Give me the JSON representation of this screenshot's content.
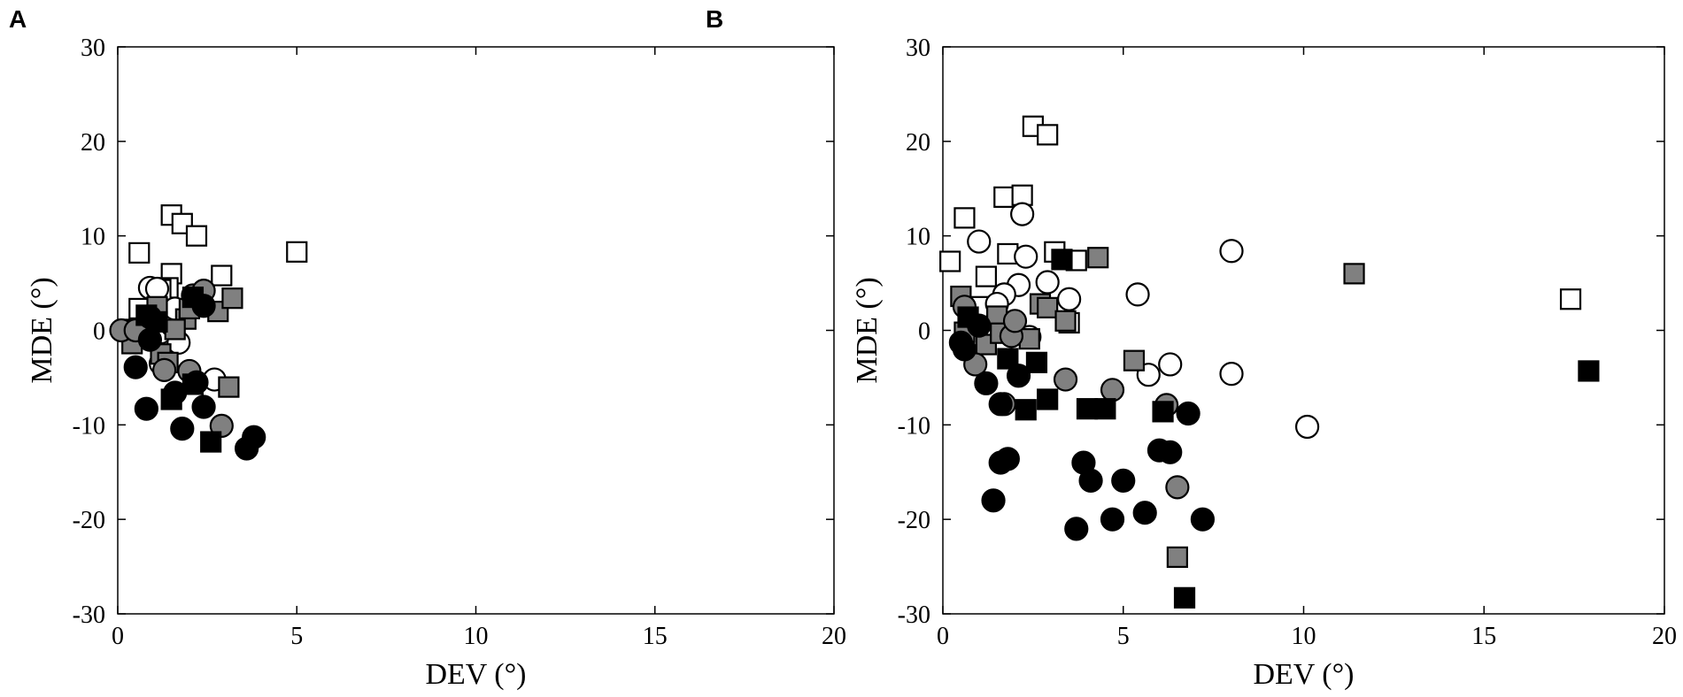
{
  "panels": [
    {
      "letter": "A"
    },
    {
      "letter": "B"
    }
  ],
  "chart_data": [
    {
      "type": "scatter",
      "panel": "A",
      "xlabel": "DEV (°)",
      "ylabel": "MDE (°)",
      "xlim": [
        0,
        20
      ],
      "ylim": [
        -30,
        30
      ],
      "xticks": [
        0,
        5,
        10,
        15,
        20
      ],
      "yticks": [
        30,
        20,
        10,
        0,
        -10,
        -20,
        -30
      ],
      "grid": false,
      "series": [
        {
          "marker": "square",
          "fill": "white",
          "points": [
            [
              0.6,
              8.2
            ],
            [
              1.5,
              12.2
            ],
            [
              1.8,
              11.3
            ],
            [
              2.2,
              10.0
            ],
            [
              1.5,
              6.0
            ],
            [
              2.9,
              5.8
            ],
            [
              5.0,
              8.3
            ],
            [
              1.4,
              4.5
            ],
            [
              0.6,
              2.3
            ],
            [
              1.2,
              4.3
            ]
          ]
        },
        {
          "marker": "circle",
          "fill": "white",
          "points": [
            [
              0.9,
              4.5
            ],
            [
              1.1,
              4.4
            ],
            [
              1.2,
              -0.2
            ],
            [
              1.5,
              0.6
            ],
            [
              1.7,
              -1.3
            ],
            [
              2.7,
              -5.2
            ],
            [
              1.2,
              -3.5
            ],
            [
              1.0,
              1.6
            ],
            [
              1.6,
              2.3
            ]
          ]
        },
        {
          "marker": "square",
          "fill": "gray",
          "points": [
            [
              0.3,
              0.1
            ],
            [
              0.4,
              -1.4
            ],
            [
              1.1,
              2.5
            ],
            [
              1.2,
              -2.5
            ],
            [
              1.4,
              -3.4
            ],
            [
              1.9,
              1.2
            ],
            [
              2.0,
              2.3
            ],
            [
              2.8,
              2.0
            ],
            [
              3.2,
              3.4
            ],
            [
              3.1,
              -6.0
            ],
            [
              1.6,
              0.1
            ]
          ]
        },
        {
          "marker": "circle",
          "fill": "gray",
          "points": [
            [
              0.1,
              0.0
            ],
            [
              0.5,
              0.0
            ],
            [
              2.1,
              3.7
            ],
            [
              2.4,
              4.2
            ],
            [
              2.0,
              -4.3
            ],
            [
              2.9,
              -10.1
            ],
            [
              1.3,
              -4.2
            ]
          ]
        },
        {
          "marker": "square",
          "fill": "black",
          "points": [
            [
              1.1,
              0.9
            ],
            [
              2.1,
              3.5
            ],
            [
              1.5,
              -7.3
            ],
            [
              2.6,
              -11.8
            ],
            [
              2.1,
              -5.7
            ],
            [
              0.8,
              1.6
            ]
          ]
        },
        {
          "marker": "circle",
          "fill": "black",
          "points": [
            [
              0.5,
              -3.9
            ],
            [
              0.8,
              -8.3
            ],
            [
              1.6,
              -6.6
            ],
            [
              1.8,
              -10.4
            ],
            [
              2.4,
              -8.1
            ],
            [
              3.6,
              -12.5
            ],
            [
              3.8,
              -11.3
            ],
            [
              2.2,
              -5.5
            ],
            [
              0.9,
              -1.0
            ],
            [
              2.4,
              2.6
            ],
            [
              0.9,
              1.4
            ]
          ]
        }
      ]
    },
    {
      "type": "scatter",
      "panel": "B",
      "xlabel": "DEV (°)",
      "ylabel": "MDE (°)",
      "xlim": [
        0,
        20
      ],
      "ylim": [
        -30,
        30
      ],
      "xticks": [
        0,
        5,
        10,
        15,
        20
      ],
      "yticks": [
        30,
        20,
        10,
        0,
        -10,
        -20,
        -30
      ],
      "grid": false,
      "series": [
        {
          "marker": "square",
          "fill": "white",
          "points": [
            [
              0.2,
              7.3
            ],
            [
              0.6,
              11.9
            ],
            [
              1.7,
              14.1
            ],
            [
              2.2,
              14.3
            ],
            [
              2.5,
              21.6
            ],
            [
              2.9,
              20.7
            ],
            [
              1.8,
              8.1
            ],
            [
              1.2,
              5.7
            ],
            [
              3.1,
              8.3
            ],
            [
              3.7,
              7.4
            ],
            [
              17.4,
              3.3
            ],
            [
              1.0,
              2.5
            ],
            [
              3.5,
              0.8
            ],
            [
              1.5,
              1.8
            ]
          ]
        },
        {
          "marker": "circle",
          "fill": "white",
          "points": [
            [
              1.0,
              9.4
            ],
            [
              2.2,
              12.3
            ],
            [
              2.3,
              7.8
            ],
            [
              2.1,
              4.8
            ],
            [
              1.7,
              3.8
            ],
            [
              2.9,
              5.1
            ],
            [
              3.5,
              3.3
            ],
            [
              5.4,
              3.8
            ],
            [
              5.7,
              -4.7
            ],
            [
              6.3,
              -3.6
            ],
            [
              8.0,
              8.4
            ],
            [
              8.0,
              -4.6
            ],
            [
              10.1,
              -10.2
            ],
            [
              2.4,
              -0.7
            ],
            [
              1.5,
              2.8
            ]
          ]
        },
        {
          "marker": "square",
          "fill": "gray",
          "points": [
            [
              0.5,
              3.6
            ],
            [
              0.6,
              -0.2
            ],
            [
              1.2,
              -1.5
            ],
            [
              1.5,
              1.5
            ],
            [
              2.4,
              -0.9
            ],
            [
              2.7,
              2.8
            ],
            [
              2.9,
              2.4
            ],
            [
              3.4,
              1.0
            ],
            [
              4.3,
              7.7
            ],
            [
              5.3,
              -3.2
            ],
            [
              6.5,
              -24.0
            ],
            [
              11.4,
              6.0
            ],
            [
              1.6,
              -0.3
            ]
          ]
        },
        {
          "marker": "circle",
          "fill": "gray",
          "points": [
            [
              0.6,
              2.5
            ],
            [
              0.9,
              -3.6
            ],
            [
              1.7,
              -7.8
            ],
            [
              1.9,
              -0.6
            ],
            [
              3.4,
              -5.2
            ],
            [
              4.7,
              -6.3
            ],
            [
              6.2,
              -7.9
            ],
            [
              6.5,
              -16.6
            ],
            [
              2.0,
              1.0
            ]
          ]
        },
        {
          "marker": "square",
          "fill": "black",
          "points": [
            [
              3.3,
              7.5
            ],
            [
              0.7,
              1.4
            ],
            [
              2.6,
              -3.4
            ],
            [
              2.9,
              -7.3
            ],
            [
              2.3,
              -8.4
            ],
            [
              4.0,
              -8.3
            ],
            [
              4.5,
              -8.3
            ],
            [
              6.1,
              -8.6
            ],
            [
              6.7,
              -28.3
            ],
            [
              17.9,
              -4.3
            ],
            [
              1.8,
              -3.0
            ]
          ]
        },
        {
          "marker": "circle",
          "fill": "black",
          "points": [
            [
              0.5,
              -1.3
            ],
            [
              0.6,
              -2.0
            ],
            [
              1.2,
              -5.6
            ],
            [
              1.6,
              -7.8
            ],
            [
              1.6,
              -14.0
            ],
            [
              1.8,
              -13.6
            ],
            [
              1.4,
              -18.0
            ],
            [
              2.1,
              -4.8
            ],
            [
              3.7,
              -21.0
            ],
            [
              3.9,
              -14.0
            ],
            [
              4.1,
              -15.9
            ],
            [
              4.7,
              -20.0
            ],
            [
              5.0,
              -15.9
            ],
            [
              5.6,
              -19.3
            ],
            [
              6.0,
              -12.7
            ],
            [
              6.3,
              -12.9
            ],
            [
              6.8,
              -8.8
            ],
            [
              7.2,
              -20.0
            ],
            [
              1.0,
              0.5
            ]
          ]
        }
      ]
    }
  ]
}
